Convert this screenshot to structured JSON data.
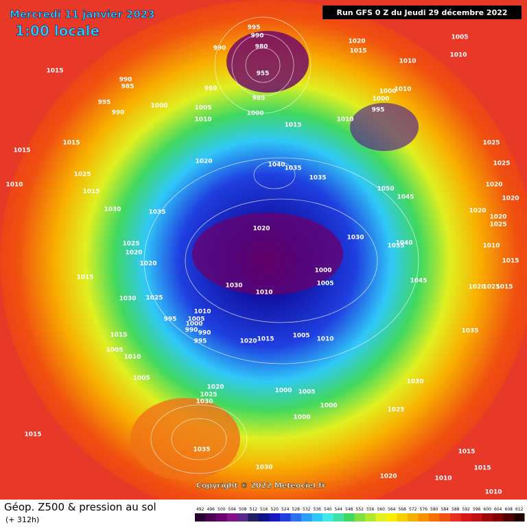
{
  "header": {
    "title": "Mercredi 11 janvier 2023",
    "time": "1:00 locale",
    "run": "Run GFS 0 Z du Jeudi 29 décembre 2022"
  },
  "copyright": "Copyright © 2022 Meteociel.fr",
  "footer": {
    "title": "Géop. Z500 & pression au sol",
    "lead": "(+ 312h)"
  },
  "scale": {
    "values": [
      492,
      496,
      500,
      504,
      508,
      512,
      516,
      520,
      524,
      528,
      532,
      536,
      540,
      544,
      548,
      552,
      556,
      560,
      564,
      568,
      572,
      576,
      580,
      584,
      588,
      592,
      596,
      600,
      604,
      608,
      612
    ],
    "colors": [
      "#2a0030",
      "#4b0050",
      "#6a006e",
      "#84108a",
      "#5a2a8a",
      "#202060",
      "#10108a",
      "#1818c0",
      "#1f3fe0",
      "#2a6ff0",
      "#2a9ff5",
      "#30c8f8",
      "#40e8e8",
      "#40e0a8",
      "#40d860",
      "#80e040",
      "#b0e830",
      "#e0f020",
      "#f8f000",
      "#f8d000",
      "#f8b000",
      "#f89000",
      "#f87000",
      "#f05010",
      "#e83020",
      "#d81818",
      "#c01010",
      "#a00808",
      "#800000",
      "#500000",
      "#200000"
    ]
  },
  "isobar_labels": [
    "995",
    "990",
    "980",
    "955",
    "990",
    "1015",
    "990",
    "985",
    "995",
    "990",
    "1000",
    "990",
    "985",
    "1005",
    "1010",
    "1000",
    "1015",
    "1020",
    "1015",
    "1005",
    "1010",
    "1010",
    "1000",
    "1010",
    "1000",
    "995",
    "1010",
    "1015",
    "1015",
    "1025",
    "1010",
    "1015",
    "1020",
    "1040",
    "1035",
    "1035",
    "1050",
    "1045",
    "1025",
    "1025",
    "1020",
    "1020",
    "1020",
    "1020",
    "1025",
    "1030",
    "1035",
    "1020",
    "1030",
    "1035",
    "1040",
    "1010",
    "1015",
    "1025",
    "1020",
    "1020",
    "1015",
    "1030",
    "1010",
    "1000",
    "1005",
    "1045",
    "1020",
    "1025",
    "1015",
    "1030",
    "1025",
    "1010",
    "1005",
    "995",
    "1000",
    "990",
    "990",
    "995",
    "1015",
    "1020",
    "1015",
    "1005",
    "1010",
    "1035",
    "1005",
    "1010",
    "1005",
    "1030",
    "1020",
    "1025",
    "1030",
    "1000",
    "1005",
    "1000",
    "1025",
    "1000",
    "1015",
    "1035",
    "1015",
    "1015",
    "1030",
    "1020",
    "1010",
    "1010"
  ]
}
